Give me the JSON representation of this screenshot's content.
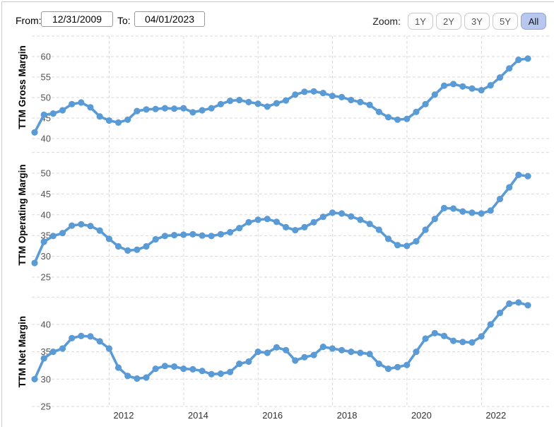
{
  "header": {
    "from_label": "From:",
    "from_value": "12/31/2009",
    "to_label": "To:",
    "to_value": "04/01/2023",
    "zoom_label": "Zoom:",
    "zoom_options": [
      "1Y",
      "2Y",
      "3Y",
      "5Y",
      "All"
    ],
    "zoom_active": "All"
  },
  "colors": {
    "series_blue": "#5b9bd5",
    "gridline": "#d9d9d9",
    "tick_label": "#555555",
    "year_label": "#333333",
    "axis_title": "#000000"
  },
  "x_axis": {
    "tick_labels": [
      "2012",
      "2014",
      "2016",
      "2018",
      "2020",
      "2022"
    ],
    "range_start": "12/31/2009",
    "range_end": "04/01/2023",
    "interval": "quarterly"
  },
  "chart_data": [
    {
      "type": "line",
      "title": "TTM Gross Margin",
      "ylabel": "TTM Gross Margin",
      "yticks": [
        40,
        45,
        50,
        55,
        60
      ],
      "ylim": [
        38,
        65
      ],
      "x_start": "2009-12-31",
      "x_step_quarters": 1,
      "values": [
        41.5,
        45.8,
        46.1,
        46.9,
        48.4,
        48.8,
        47.6,
        45.4,
        44.4,
        43.9,
        44.6,
        46.7,
        47.1,
        47.2,
        47.4,
        47.3,
        47.4,
        46.4,
        46.9,
        47.4,
        48.4,
        49.2,
        49.4,
        48.9,
        48.5,
        47.8,
        48.6,
        49.3,
        50.7,
        51.4,
        51.5,
        51.1,
        50.4,
        50.1,
        49.4,
        48.9,
        48.2,
        46.5,
        45.2,
        44.6,
        44.8,
        46.5,
        48.4,
        50.7,
        52.9,
        53.3,
        52.7,
        52.2,
        51.8,
        53.0,
        54.9,
        57.1,
        59.2,
        59.5
      ]
    },
    {
      "type": "line",
      "title": "TTM Operating Margin",
      "ylabel": "TTM Operating Margin",
      "yticks": [
        25,
        30,
        35,
        40,
        45,
        50
      ],
      "ylim": [
        23,
        55
      ],
      "x_start": "2009-12-31",
      "x_step_quarters": 1,
      "values": [
        28.4,
        33.5,
        34.9,
        35.6,
        37.4,
        37.7,
        37.3,
        36.2,
        34.2,
        32.4,
        31.4,
        31.6,
        32.4,
        34.1,
        34.9,
        35.1,
        35.2,
        35.3,
        35.0,
        34.9,
        35.3,
        35.8,
        36.8,
        38.2,
        38.8,
        39.0,
        38.3,
        37.0,
        36.3,
        37.0,
        38.2,
        39.5,
        40.5,
        40.3,
        39.6,
        38.8,
        37.8,
        36.4,
        34.2,
        32.7,
        32.5,
        33.6,
        36.4,
        39.0,
        41.6,
        41.5,
        40.8,
        40.5,
        40.3,
        41.0,
        43.8,
        46.6,
        49.6,
        49.3
      ]
    },
    {
      "type": "line",
      "title": "TTM Net Margin",
      "ylabel": "TTM Net Margin",
      "yticks": [
        25,
        30,
        35,
        40
      ],
      "ylim": [
        23,
        45
      ],
      "x_start": "2009-12-31",
      "x_step_quarters": 1,
      "values": [
        30.0,
        33.8,
        35.0,
        35.6,
        37.5,
        37.9,
        37.8,
        36.9,
        35.6,
        32.1,
        30.6,
        30.1,
        30.3,
        31.9,
        32.4,
        32.3,
        31.9,
        31.8,
        31.5,
        30.9,
        31.0,
        31.3,
        32.8,
        33.2,
        35.0,
        34.8,
        35.8,
        35.3,
        33.4,
        34.0,
        34.4,
        35.9,
        35.6,
        35.3,
        35.0,
        34.8,
        34.6,
        32.8,
        31.9,
        32.2,
        32.6,
        35.0,
        37.4,
        38.4,
        37.9,
        37.0,
        36.8,
        36.7,
        37.8,
        40.0,
        42.1,
        43.8,
        44.0,
        43.5
      ]
    }
  ]
}
